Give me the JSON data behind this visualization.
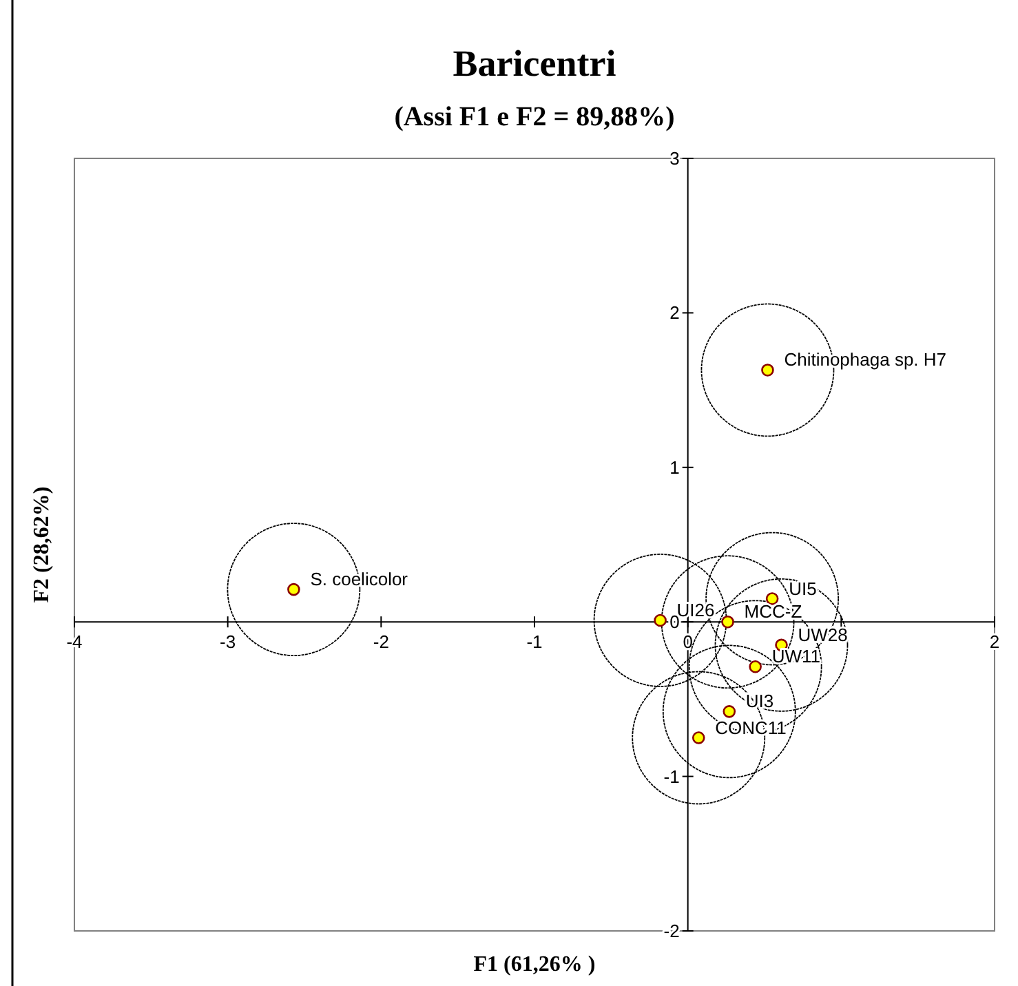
{
  "chart_data": {
    "type": "scatter",
    "title": "Baricentri",
    "subtitle": "(Assi F1 e F2 = 89,88%)",
    "xlabel": "F1 (61,26% )",
    "ylabel": "F2 (28,62%)",
    "xlim": [
      -4,
      2
    ],
    "ylim": [
      -2,
      3
    ],
    "xticks": [
      -4,
      -3,
      -2,
      -1,
      0,
      {
        "value": 1,
        "label": null
      },
      2
    ],
    "yticks": [
      -2,
      -1,
      0,
      1,
      2,
      3
    ],
    "grid": false,
    "marker": "circle",
    "series": [
      {
        "color": "#ffff00",
        "x": [
          -2.57,
          0.52,
          -0.18,
          0.26,
          0.55,
          0.61,
          0.44,
          0.27,
          0.07
        ],
        "values": [
          0.21,
          1.63,
          0.01,
          0.0,
          0.15,
          -0.15,
          -0.29,
          -0.58,
          -0.75
        ]
      }
    ],
    "annotations": [
      {
        "text": "S. coelicolor",
        "x": -2.57,
        "y": 0.21
      },
      {
        "text": "Chitinophaga sp. H7",
        "x": 0.52,
        "y": 1.63
      },
      {
        "text": "UI26",
        "x": -0.18,
        "y": 0.01
      },
      {
        "text": "MCC-Z",
        "x": 0.26,
        "y": 0.0
      },
      {
        "text": "UI5",
        "x": 0.55,
        "y": 0.15
      },
      {
        "text": "UW28",
        "x": 0.61,
        "y": -0.15
      },
      {
        "text": "UW11",
        "x": 0.44,
        "y": -0.29
      },
      {
        "text": "UI3",
        "x": 0.27,
        "y": -0.58
      },
      {
        "text": "CONC11",
        "x": 0.07,
        "y": -0.75
      }
    ]
  }
}
